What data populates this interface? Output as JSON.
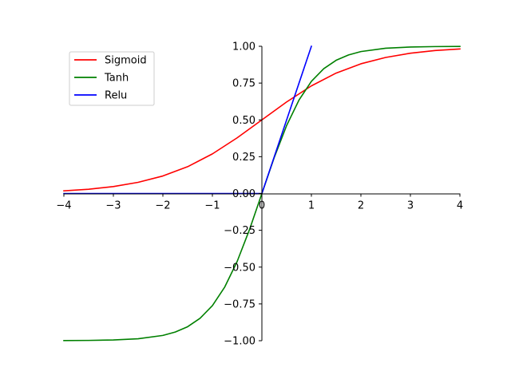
{
  "chart_data": {
    "type": "line",
    "title": "",
    "xlabel": "",
    "ylabel": "",
    "xlim": [
      -4,
      4
    ],
    "ylim": [
      -1,
      1
    ],
    "x_ticks": [
      -4,
      -3,
      -2,
      -1,
      0,
      1,
      2,
      3,
      4
    ],
    "x_tick_labels": [
      "−4",
      "−3",
      "−2",
      "−1",
      "0",
      "1",
      "2",
      "3",
      "4"
    ],
    "y_ticks": [
      -1.0,
      -0.75,
      -0.5,
      -0.25,
      0.0,
      0.25,
      0.5,
      0.75,
      1.0
    ],
    "y_tick_labels": [
      "−1.00",
      "−0.75",
      "−0.50",
      "−0.25",
      "0.00",
      "0.25",
      "0.50",
      "0.75",
      "1.00"
    ],
    "grid": false,
    "spines": "centered at origin",
    "legend_position": "top-left",
    "series": [
      {
        "name": "Sigmoid",
        "color": "#ff0000",
        "x": [
          -4,
          -3.5,
          -3,
          -2.5,
          -2,
          -1.5,
          -1,
          -0.5,
          0,
          0.5,
          1,
          1.5,
          2,
          2.5,
          3,
          3.5,
          4
        ],
        "values": [
          0.018,
          0.029,
          0.047,
          0.076,
          0.119,
          0.182,
          0.269,
          0.378,
          0.5,
          0.622,
          0.731,
          0.818,
          0.881,
          0.924,
          0.953,
          0.971,
          0.982
        ]
      },
      {
        "name": "Tanh",
        "color": "#008000",
        "x": [
          -4,
          -3.5,
          -3,
          -2.5,
          -2,
          -1.75,
          -1.5,
          -1.25,
          -1,
          -0.75,
          -0.5,
          -0.25,
          0,
          0.25,
          0.5,
          0.75,
          1,
          1.25,
          1.5,
          1.75,
          2,
          2.5,
          3,
          3.5,
          4
        ],
        "values": [
          -0.999,
          -0.998,
          -0.995,
          -0.987,
          -0.964,
          -0.941,
          -0.905,
          -0.848,
          -0.762,
          -0.635,
          -0.462,
          -0.245,
          0.0,
          0.245,
          0.462,
          0.635,
          0.762,
          0.848,
          0.905,
          0.941,
          0.964,
          0.987,
          0.995,
          0.998,
          0.999
        ]
      },
      {
        "name": "Relu",
        "color": "#0000ff",
        "x": [
          -4,
          0,
          1
        ],
        "values": [
          0,
          0,
          1
        ]
      }
    ]
  }
}
